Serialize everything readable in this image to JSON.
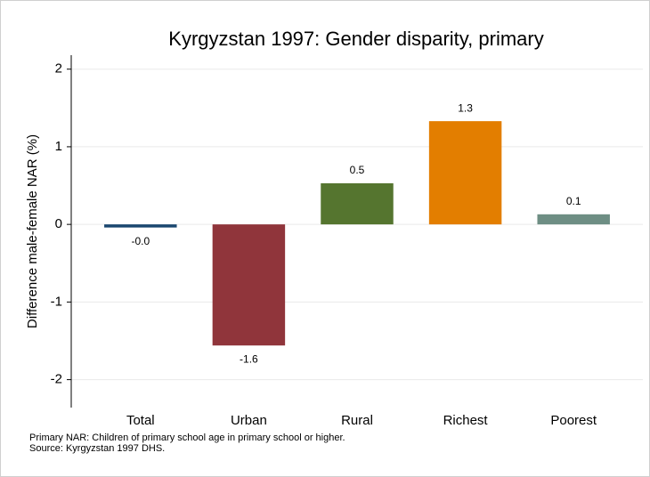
{
  "chart_data": {
    "type": "bar",
    "title": "Kyrgyzstan 1997: Gender disparity, primary",
    "y_label": "Difference male-female NAR (%)",
    "categories": [
      "Total",
      "Urban",
      "Rural",
      "Richest",
      "Poorest"
    ],
    "values": [
      -0.04,
      -1.56,
      0.53,
      1.33,
      0.13
    ],
    "value_labels": [
      "-0.0",
      "-1.6",
      "0.5",
      "1.3",
      "0.1"
    ],
    "colors": [
      "#1a476f",
      "#90353b",
      "#55752f",
      "#e37e00",
      "#6e8e84"
    ],
    "ylim": [
      -2.36,
      2.18
    ],
    "yticks": [
      -2,
      -1,
      0,
      1,
      2
    ],
    "grid": true,
    "notes": [
      "Primary NAR: Children of primary school age in primary school or higher.",
      "Source: Kyrgyzstan 1997 DHS."
    ]
  }
}
